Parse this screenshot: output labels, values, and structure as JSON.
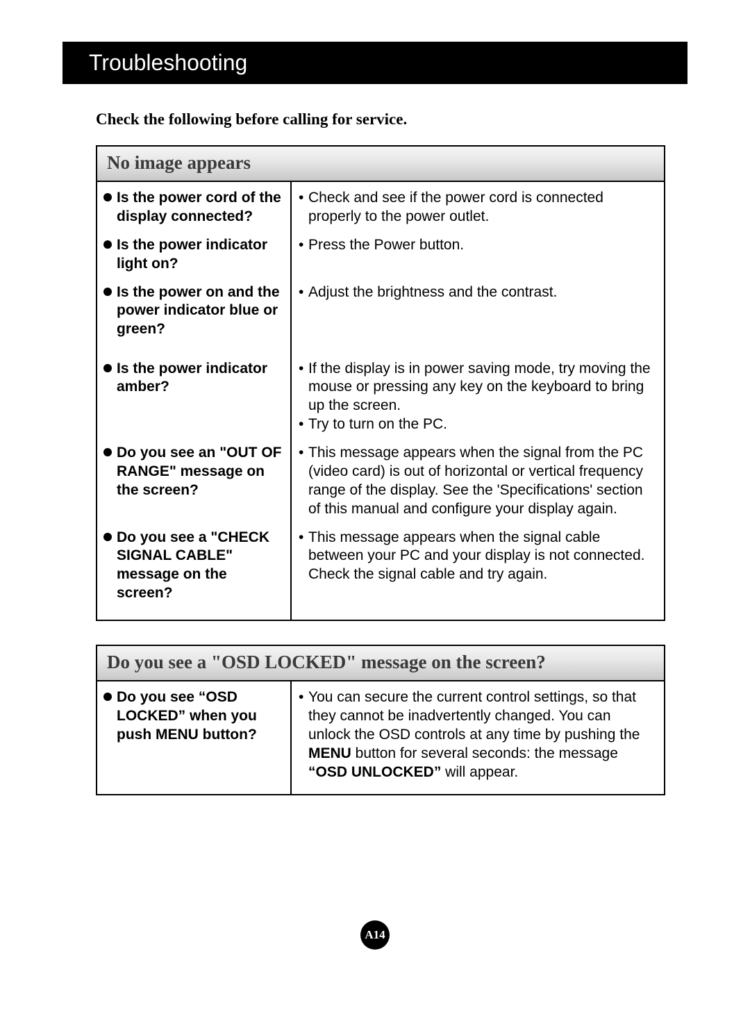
{
  "title": "Troubleshooting",
  "intro": "Check the following before calling for service.",
  "page_number": "A14",
  "table1": {
    "header": "No image appears",
    "rows": [
      {
        "q": "Is the power cord of the display connected?",
        "a": [
          "Check and see if the power cord is connected properly to the power outlet."
        ]
      },
      {
        "q": "Is the power indicator light on?",
        "a": [
          "Press the Power button."
        ]
      },
      {
        "q": "Is the power on and the power indicator blue or green?",
        "a": [
          "Adjust the brightness and the contrast."
        ]
      },
      {
        "q": "Is the power indicator amber?",
        "a": [
          "If the display is in power saving mode, try moving the mouse or pressing any key on the keyboard to bring up the screen.",
          "Try to turn on the PC."
        ]
      },
      {
        "q": "Do you see an \"OUT OF RANGE\" message on the screen?",
        "a": [
          "This message appears when the signal from the PC (video card) is out of horizontal or vertical frequency range of the display. See the 'Specifications' section of this manual and configure your display again."
        ]
      },
      {
        "q": "Do you see a \"CHECK SIGNAL CABLE\" message on the screen?",
        "a": [
          "This message appears when the signal cable between your PC and your display is not connected. Check the signal cable and try again."
        ]
      }
    ]
  },
  "table2": {
    "header": "Do you see a \"OSD LOCKED\" message on the screen?",
    "q": "Do you see “OSD LOCKED” when you push MENU button?",
    "a_pre": "You can secure the current control settings, so that they cannot be inadvertently changed. You can unlock the OSD controls at any time by pushing the ",
    "a_bold1": "MENU",
    "a_mid": " button for several seconds: the message ",
    "a_bold2": "“OSD UNLOCKED”",
    "a_post": " will appear."
  }
}
